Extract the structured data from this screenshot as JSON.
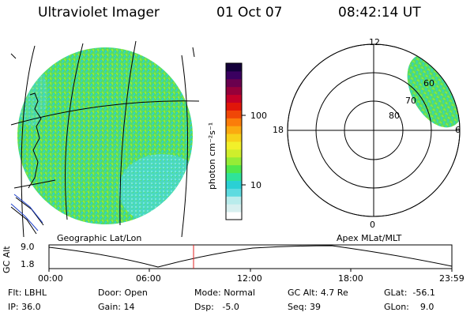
{
  "header": {
    "instrument": "Ultraviolet Imager",
    "date": "01 Oct 07",
    "time": "08:42:14 UT"
  },
  "colorbar": {
    "label": "photon cm⁻²s⁻¹",
    "ticks": [
      "100",
      "10"
    ],
    "colors": [
      "#ffffff",
      "#d8f0f0",
      "#b9ecec",
      "#5ddbe0",
      "#2ad0d4",
      "#2fe39a",
      "#4fe84c",
      "#95ec36",
      "#cfee2c",
      "#f2f02a",
      "#f7d21a",
      "#fbaa10",
      "#fb7d0a",
      "#f04707",
      "#e0160a",
      "#c40028",
      "#96003a",
      "#6a004e",
      "#3a0060",
      "#14003a"
    ]
  },
  "polar_plot": {
    "labels": {
      "top": "12",
      "left": "18",
      "right": "6",
      "bottom": "0",
      "ring_80": "80",
      "ring_70": "70",
      "ring_60": "60"
    }
  },
  "footer_labels": {
    "left": "Geographic Lat/Lon",
    "right": "Apex MLat/MLT"
  },
  "altitude_strip": {
    "axis_label": "GC Alt",
    "ymax": "9.0",
    "ymin": "1.8",
    "x_ticks": [
      "00:00",
      "06:00",
      "12:00",
      "18:00",
      "23:59"
    ],
    "marker_color": "#e02020"
  },
  "status": {
    "col1": [
      {
        "k": "Flt:",
        "v": "LBHL"
      },
      {
        "k": "IP:",
        "v": "36.0"
      }
    ],
    "col2": [
      {
        "k": "Door:",
        "v": "Open"
      },
      {
        "k": "Gain:",
        "v": "14"
      }
    ],
    "col3": [
      {
        "k": "Mode:",
        "v": "Normal"
      },
      {
        "k": "Dsp:",
        "v": "-5.0"
      }
    ],
    "col4": [
      {
        "k": "GC Alt:",
        "v": "4.7 Re"
      },
      {
        "k": "Seq:",
        "v": "39"
      }
    ],
    "col5": [
      {
        "k": "GLat:",
        "v": "-56.1"
      },
      {
        "k": "GLon:",
        "v": "9.0"
      }
    ]
  }
}
